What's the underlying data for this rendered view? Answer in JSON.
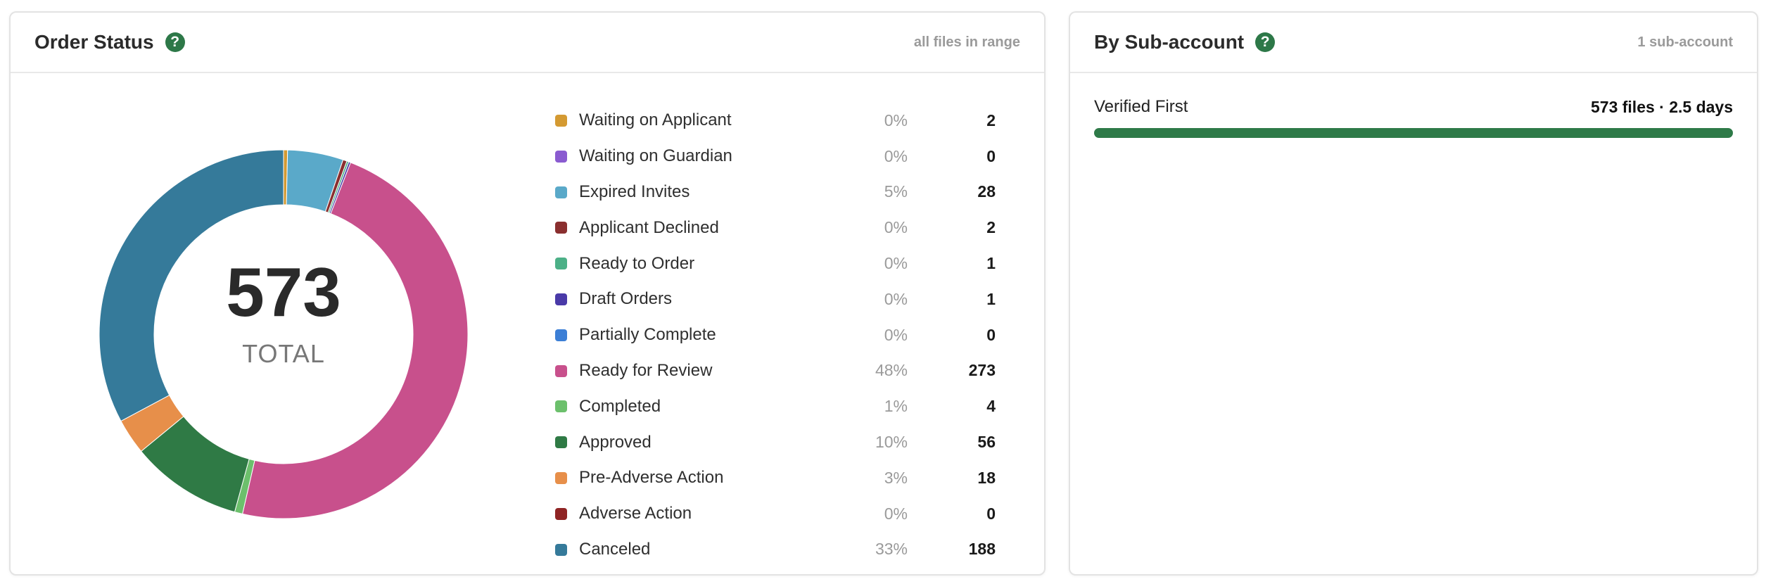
{
  "order_status": {
    "title": "Order Status",
    "help": "?",
    "meta": "all files in range",
    "total": "573",
    "total_label": "TOTAL",
    "items": [
      {
        "label": "Waiting on Applicant",
        "pct": "0%",
        "count": "2",
        "value": 2,
        "color": "#d49a32"
      },
      {
        "label": "Waiting on Guardian",
        "pct": "0%",
        "count": "0",
        "value": 0,
        "color": "#8a5bd0"
      },
      {
        "label": "Expired Invites",
        "pct": "5%",
        "count": "28",
        "value": 28,
        "color": "#5aa9c9"
      },
      {
        "label": "Applicant Declined",
        "pct": "0%",
        "count": "2",
        "value": 2,
        "color": "#8a2f2f"
      },
      {
        "label": "Ready to Order",
        "pct": "0%",
        "count": "1",
        "value": 1,
        "color": "#4cb087"
      },
      {
        "label": "Draft Orders",
        "pct": "0%",
        "count": "1",
        "value": 1,
        "color": "#4a3aa8"
      },
      {
        "label": "Partially Complete",
        "pct": "0%",
        "count": "0",
        "value": 0,
        "color": "#3c7fd6"
      },
      {
        "label": "Ready for Review",
        "pct": "48%",
        "count": "273",
        "value": 273,
        "color": "#c8508c"
      },
      {
        "label": "Completed",
        "pct": "1%",
        "count": "4",
        "value": 4,
        "color": "#6cc06c"
      },
      {
        "label": "Approved",
        "pct": "10%",
        "count": "56",
        "value": 56,
        "color": "#2f7a45"
      },
      {
        "label": "Pre-Adverse Action",
        "pct": "3%",
        "count": "18",
        "value": 18,
        "color": "#e78f4a"
      },
      {
        "label": "Adverse Action",
        "pct": "0%",
        "count": "0",
        "value": 0,
        "color": "#8f2424"
      },
      {
        "label": "Canceled",
        "pct": "33%",
        "count": "188",
        "value": 188,
        "color": "#357a9a"
      }
    ]
  },
  "by_sub_account": {
    "title": "By Sub-account",
    "help": "?",
    "meta": "1 sub-account",
    "rows": [
      {
        "name": "Verified First",
        "stats": "573 files · 2.5 days",
        "fill_fraction": 1.0
      }
    ]
  }
}
